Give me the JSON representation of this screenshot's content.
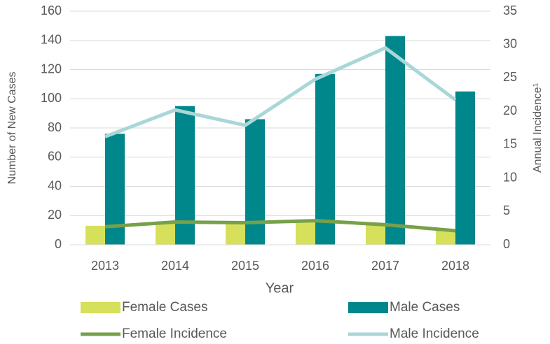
{
  "chart_data": {
    "type": "bar",
    "x_label": "Year",
    "y_label": "Number of New Cases",
    "y2_label": "Annual Incidence¹",
    "categories": [
      "2013",
      "2014",
      "2015",
      "2016",
      "2017",
      "2018"
    ],
    "series": [
      {
        "name": "Female Cases",
        "type": "bar",
        "color": "#d6e05a",
        "values": [
          13,
          16,
          15,
          17,
          14,
          10
        ]
      },
      {
        "name": "Male Cases",
        "type": "bar",
        "color": "#00878b",
        "values": [
          76,
          95,
          86,
          117,
          143,
          105
        ]
      },
      {
        "name": "Female Incidence",
        "type": "line",
        "axis": "y2",
        "color": "#77a04a",
        "values": [
          2.7,
          3.4,
          3.3,
          3.6,
          3.0,
          2.1
        ]
      },
      {
        "name": "Male Incidence",
        "type": "line",
        "axis": "y2",
        "color": "#a9d7d8",
        "values": [
          16.2,
          20.2,
          17.9,
          24.8,
          29.5,
          21.7
        ]
      }
    ],
    "ylim": [
      0,
      160
    ],
    "yticks": [
      0,
      20,
      40,
      60,
      80,
      100,
      120,
      140,
      160
    ],
    "y2lim": [
      0,
      35
    ],
    "y2ticks": [
      0,
      5,
      10,
      15,
      20,
      25,
      30,
      35
    ],
    "grid": true
  }
}
